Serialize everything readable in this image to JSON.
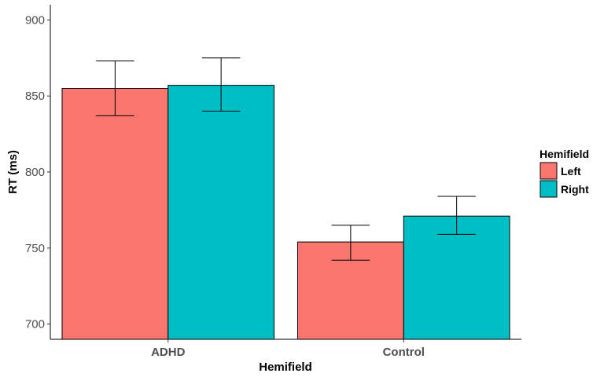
{
  "chart_data": {
    "type": "bar",
    "title": "",
    "xlabel": "Hemifield",
    "ylabel": "RT (ms)",
    "categories": [
      "ADHD",
      "Control"
    ],
    "ylim": [
      690,
      910
    ],
    "yticks": [
      700,
      750,
      800,
      850,
      900
    ],
    "grid": false,
    "legend": {
      "title": "Hemifield",
      "placement": "right"
    },
    "series": [
      {
        "name": "Left",
        "color": "#F8766D",
        "values": [
          855,
          754
        ],
        "error_low": [
          837,
          742
        ],
        "error_high": [
          873,
          765
        ]
      },
      {
        "name": "Right",
        "color": "#00BFC4",
        "values": [
          857,
          771
        ],
        "error_low": [
          840,
          759
        ],
        "error_high": [
          875,
          784
        ]
      }
    ]
  }
}
